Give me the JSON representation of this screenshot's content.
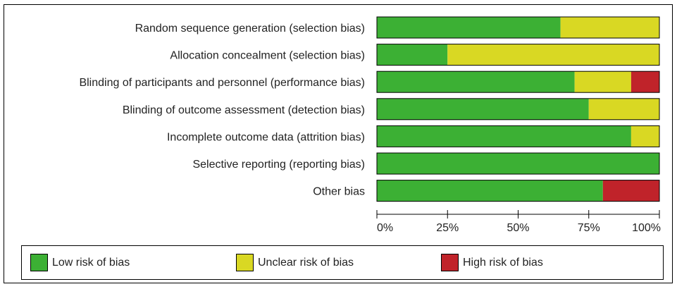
{
  "chart_data": {
    "type": "bar",
    "orientation": "horizontal",
    "stacked": true,
    "categories": [
      "Random sequence generation (selection bias)",
      "Allocation concealment (selection bias)",
      "Blinding of participants and personnel (performance bias)",
      "Blinding of outcome assessment (detection bias)",
      "Incomplete outcome data (attrition bias)",
      "Selective reporting (reporting bias)",
      "Other bias"
    ],
    "series": [
      {
        "name": "Low risk of bias",
        "color": "#3cb034",
        "values": [
          65,
          25,
          70,
          75,
          90,
          100,
          80
        ]
      },
      {
        "name": "Unclear risk of bias",
        "color": "#d9d823",
        "values": [
          35,
          75,
          20,
          25,
          10,
          0,
          0
        ]
      },
      {
        "name": "High risk of bias",
        "color": "#c0232a",
        "values": [
          0,
          0,
          10,
          0,
          0,
          0,
          20
        ]
      }
    ],
    "xlim": [
      0,
      100
    ],
    "ticks": [
      0,
      25,
      50,
      75,
      100
    ],
    "tick_labels": [
      "0%",
      "25%",
      "50%",
      "75%",
      "100%"
    ],
    "legend_position": "bottom",
    "grid": false
  }
}
